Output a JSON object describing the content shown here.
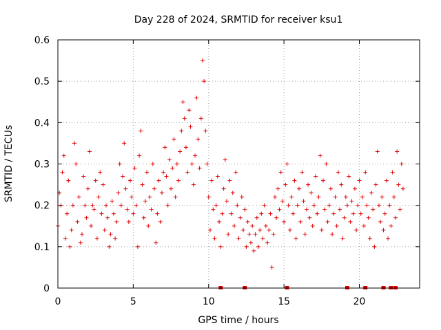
{
  "chart_data": {
    "type": "scatter",
    "title": "Day 228 of 2024, SRMTID for receiver ksu1",
    "xlabel": "GPS time / hours",
    "ylabel": "SRMTID / TECUs",
    "xlim": [
      0,
      24
    ],
    "ylim": [
      0,
      0.6
    ],
    "xticks": [
      0,
      5,
      10,
      15,
      20
    ],
    "xtick_labels": [
      "0",
      "5",
      "10",
      "15",
      "20"
    ],
    "yticks": [
      0,
      0.1,
      0.2,
      0.3,
      0.4,
      0.5,
      0.6
    ],
    "ytick_labels": [
      "0",
      "0.1",
      "0.2",
      "0.3",
      "0.4",
      "0.5",
      "0.6"
    ],
    "grid": true,
    "marker": "+",
    "color": "#e00000",
    "series": [
      {
        "name": "SRMTID",
        "points": [
          [
            0.0,
            0.15
          ],
          [
            0.1,
            0.23
          ],
          [
            0.2,
            0.2
          ],
          [
            0.3,
            0.28
          ],
          [
            0.4,
            0.32
          ],
          [
            0.5,
            0.12
          ],
          [
            0.6,
            0.18
          ],
          [
            0.7,
            0.26
          ],
          [
            0.8,
            0.1
          ],
          [
            0.9,
            0.14
          ],
          [
            1.0,
            0.2
          ],
          [
            1.1,
            0.35
          ],
          [
            1.2,
            0.3
          ],
          [
            1.3,
            0.16
          ],
          [
            1.4,
            0.22
          ],
          [
            1.5,
            0.11
          ],
          [
            1.6,
            0.13
          ],
          [
            1.7,
            0.27
          ],
          [
            1.8,
            0.2
          ],
          [
            1.9,
            0.17
          ],
          [
            2.0,
            0.24
          ],
          [
            2.1,
            0.33
          ],
          [
            2.2,
            0.15
          ],
          [
            2.3,
            0.2
          ],
          [
            2.4,
            0.19
          ],
          [
            2.5,
            0.26
          ],
          [
            2.6,
            0.12
          ],
          [
            2.7,
            0.22
          ],
          [
            2.8,
            0.28
          ],
          [
            2.9,
            0.18
          ],
          [
            3.0,
            0.25
          ],
          [
            3.1,
            0.14
          ],
          [
            3.2,
            0.2
          ],
          [
            3.3,
            0.17
          ],
          [
            3.4,
            0.1
          ],
          [
            3.5,
            0.13
          ],
          [
            3.6,
            0.21
          ],
          [
            3.7,
            0.18
          ],
          [
            3.8,
            0.12
          ],
          [
            3.9,
            0.16
          ],
          [
            4.0,
            0.23
          ],
          [
            4.1,
            0.3
          ],
          [
            4.2,
            0.2
          ],
          [
            4.3,
            0.27
          ],
          [
            4.4,
            0.35
          ],
          [
            4.5,
            0.24
          ],
          [
            4.6,
            0.19
          ],
          [
            4.7,
            0.16
          ],
          [
            4.8,
            0.26
          ],
          [
            4.9,
            0.22
          ],
          [
            5.0,
            0.18
          ],
          [
            5.1,
            0.29
          ],
          [
            5.2,
            0.2
          ],
          [
            5.3,
            0.1
          ],
          [
            5.4,
            0.32
          ],
          [
            5.5,
            0.38
          ],
          [
            5.6,
            0.25
          ],
          [
            5.7,
            0.17
          ],
          [
            5.8,
            0.21
          ],
          [
            5.9,
            0.28
          ],
          [
            6.0,
            0.15
          ],
          [
            6.1,
            0.22
          ],
          [
            6.2,
            0.19
          ],
          [
            6.3,
            0.3
          ],
          [
            6.4,
            0.24
          ],
          [
            6.5,
            0.11
          ],
          [
            6.6,
            0.18
          ],
          [
            6.7,
            0.26
          ],
          [
            6.8,
            0.16
          ],
          [
            6.9,
            0.23
          ],
          [
            7.0,
            0.28
          ],
          [
            7.1,
            0.34
          ],
          [
            7.2,
            0.27
          ],
          [
            7.3,
            0.2
          ],
          [
            7.4,
            0.31
          ],
          [
            7.5,
            0.24
          ],
          [
            7.6,
            0.29
          ],
          [
            7.7,
            0.36
          ],
          [
            7.8,
            0.22
          ],
          [
            7.9,
            0.3
          ],
          [
            8.0,
            0.26
          ],
          [
            8.1,
            0.33
          ],
          [
            8.2,
            0.38
          ],
          [
            8.3,
            0.45
          ],
          [
            8.4,
            0.41
          ],
          [
            8.5,
            0.34
          ],
          [
            8.6,
            0.28
          ],
          [
            8.7,
            0.43
          ],
          [
            8.8,
            0.39
          ],
          [
            8.9,
            0.3
          ],
          [
            9.0,
            0.25
          ],
          [
            9.1,
            0.32
          ],
          [
            9.2,
            0.46
          ],
          [
            9.3,
            0.36
          ],
          [
            9.4,
            0.29
          ],
          [
            9.5,
            0.41
          ],
          [
            9.6,
            0.55
          ],
          [
            9.7,
            0.5
          ],
          [
            9.8,
            0.38
          ],
          [
            9.9,
            0.3
          ],
          [
            10.0,
            0.22
          ],
          [
            10.1,
            0.14
          ],
          [
            10.2,
            0.26
          ],
          [
            10.3,
            0.19
          ],
          [
            10.4,
            0.12
          ],
          [
            10.5,
            0.2
          ],
          [
            10.6,
            0.27
          ],
          [
            10.7,
            0.16
          ],
          [
            10.8,
            0.1
          ],
          [
            10.9,
            0.18
          ],
          [
            11.0,
            0.24
          ],
          [
            11.1,
            0.31
          ],
          [
            11.2,
            0.21
          ],
          [
            11.3,
            0.13
          ],
          [
            11.4,
            0.26
          ],
          [
            11.5,
            0.18
          ],
          [
            11.6,
            0.23
          ],
          [
            11.7,
            0.15
          ],
          [
            11.8,
            0.28
          ],
          [
            11.9,
            0.2
          ],
          [
            12.0,
            0.12
          ],
          [
            12.1,
            0.17
          ],
          [
            12.2,
            0.22
          ],
          [
            12.3,
            0.14
          ],
          [
            12.4,
            0.19
          ],
          [
            12.5,
            0.1
          ],
          [
            12.6,
            0.16
          ],
          [
            12.7,
            0.13
          ],
          [
            12.8,
            0.11
          ],
          [
            12.9,
            0.15
          ],
          [
            13.0,
            0.09
          ],
          [
            13.1,
            0.13
          ],
          [
            13.2,
            0.17
          ],
          [
            13.3,
            0.1
          ],
          [
            13.4,
            0.14
          ],
          [
            13.5,
            0.18
          ],
          [
            13.6,
            0.12
          ],
          [
            13.7,
            0.2
          ],
          [
            13.8,
            0.15
          ],
          [
            13.9,
            0.11
          ],
          [
            14.0,
            0.14
          ],
          [
            14.1,
            0.18
          ],
          [
            14.2,
            0.05
          ],
          [
            14.3,
            0.13
          ],
          [
            14.4,
            0.22
          ],
          [
            14.5,
            0.17
          ],
          [
            14.6,
            0.24
          ],
          [
            14.7,
            0.19
          ],
          [
            14.8,
            0.28
          ],
          [
            14.9,
            0.21
          ],
          [
            15.0,
            0.16
          ],
          [
            15.1,
            0.25
          ],
          [
            15.2,
            0.3
          ],
          [
            15.3,
            0.2
          ],
          [
            15.4,
            0.14
          ],
          [
            15.5,
            0.22
          ],
          [
            15.6,
            0.18
          ],
          [
            15.7,
            0.26
          ],
          [
            15.8,
            0.12
          ],
          [
            15.9,
            0.2
          ],
          [
            16.0,
            0.24
          ],
          [
            16.1,
            0.16
          ],
          [
            16.2,
            0.28
          ],
          [
            16.3,
            0.21
          ],
          [
            16.4,
            0.13
          ],
          [
            16.5,
            0.19
          ],
          [
            16.6,
            0.25
          ],
          [
            16.7,
            0.17
          ],
          [
            16.8,
            0.23
          ],
          [
            16.9,
            0.15
          ],
          [
            17.0,
            0.2
          ],
          [
            17.1,
            0.27
          ],
          [
            17.2,
            0.18
          ],
          [
            17.3,
            0.22
          ],
          [
            17.4,
            0.32
          ],
          [
            17.5,
            0.14
          ],
          [
            17.6,
            0.26
          ],
          [
            17.7,
            0.19
          ],
          [
            17.8,
            0.3
          ],
          [
            17.9,
            0.16
          ],
          [
            18.0,
            0.2
          ],
          [
            18.1,
            0.24
          ],
          [
            18.2,
            0.13
          ],
          [
            18.3,
            0.18
          ],
          [
            18.4,
            0.22
          ],
          [
            18.5,
            0.15
          ],
          [
            18.6,
            0.28
          ],
          [
            18.7,
            0.19
          ],
          [
            18.8,
            0.25
          ],
          [
            18.9,
            0.12
          ],
          [
            19.0,
            0.17
          ],
          [
            19.1,
            0.22
          ],
          [
            19.2,
            0.2
          ],
          [
            19.3,
            0.27
          ],
          [
            19.4,
            0.16
          ],
          [
            19.5,
            0.21
          ],
          [
            19.6,
            0.18
          ],
          [
            19.7,
            0.24
          ],
          [
            19.8,
            0.14
          ],
          [
            19.9,
            0.2
          ],
          [
            20.0,
            0.26
          ],
          [
            20.1,
            0.18
          ],
          [
            20.2,
            0.22
          ],
          [
            20.3,
            0.15
          ],
          [
            20.4,
            0.28
          ],
          [
            20.5,
            0.2
          ],
          [
            20.6,
            0.17
          ],
          [
            20.7,
            0.12
          ],
          [
            20.8,
            0.23
          ],
          [
            20.9,
            0.19
          ],
          [
            21.0,
            0.1
          ],
          [
            21.1,
            0.25
          ],
          [
            21.2,
            0.33
          ],
          [
            21.3,
            0.2
          ],
          [
            21.4,
            0.16
          ],
          [
            21.5,
            0.22
          ],
          [
            21.6,
            0.14
          ],
          [
            21.7,
            0.18
          ],
          [
            21.8,
            0.26
          ],
          [
            21.9,
            0.12
          ],
          [
            22.0,
            0.2
          ],
          [
            22.1,
            0.15
          ],
          [
            22.2,
            0.28
          ],
          [
            22.3,
            0.22
          ],
          [
            22.4,
            0.17
          ],
          [
            22.5,
            0.33
          ],
          [
            22.6,
            0.25
          ],
          [
            22.7,
            0.19
          ],
          [
            22.8,
            0.3
          ],
          [
            22.9,
            0.24
          ]
        ]
      }
    ],
    "zero_markers_x": [
      10.8,
      12.4,
      15.2,
      19.2,
      20.4,
      21.6,
      22.1,
      22.4
    ]
  }
}
